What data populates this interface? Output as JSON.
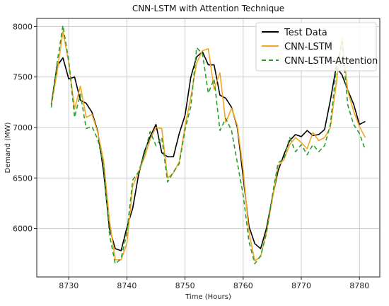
{
  "chart_data": {
    "type": "line",
    "title": "CNN-LSTM with Attention Technique",
    "xlabel": "Time (Hours)",
    "ylabel": "Demand (MW)",
    "xlim": [
      8724.5,
      8783.5
    ],
    "ylim": [
      5520,
      8080
    ],
    "xticks": [
      8730,
      8740,
      8750,
      8760,
      8770,
      8780
    ],
    "yticks": [
      6000,
      6500,
      7000,
      7500,
      8000
    ],
    "grid": true,
    "legend_position": "top-right",
    "x": [
      8727,
      8728,
      8729,
      8730,
      8731,
      8732,
      8733,
      8734,
      8735,
      8736,
      8737,
      8738,
      8739,
      8740,
      8741,
      8742,
      8743,
      8744,
      8745,
      8746,
      8747,
      8748,
      8749,
      8750,
      8751,
      8752,
      8753,
      8754,
      8755,
      8756,
      8757,
      8758,
      8759,
      8760,
      8761,
      8762,
      8763,
      8764,
      8765,
      8766,
      8767,
      8768,
      8769,
      8770,
      8771,
      8772,
      8773,
      8774,
      8775,
      8776,
      8777,
      8778,
      8779,
      8780,
      8781
    ],
    "series": [
      {
        "name": "Test Data",
        "color": "#000000",
        "dash": "",
        "values": [
          7230,
          7610,
          7690,
          7480,
          7500,
          7270,
          7240,
          7150,
          6960,
          6560,
          6000,
          5800,
          5780,
          6010,
          6200,
          6530,
          6760,
          6910,
          7030,
          6750,
          6710,
          6710,
          6940,
          7120,
          7500,
          7700,
          7750,
          7620,
          7620,
          7320,
          7290,
          7200,
          7000,
          6510,
          6020,
          5850,
          5800,
          6000,
          6300,
          6570,
          6730,
          6870,
          6930,
          6910,
          6970,
          6920,
          6930,
          6980,
          7270,
          7600,
          7520,
          7370,
          7230,
          7030,
          7060
        ]
      },
      {
        "name": "CNN-LSTM",
        "color": "#f5a623",
        "dash": "",
        "values": [
          7220,
          7550,
          7950,
          7640,
          7180,
          7410,
          7100,
          7130,
          6950,
          6670,
          6080,
          5690,
          5690,
          5850,
          6420,
          6560,
          6700,
          6880,
          7000,
          6990,
          6500,
          6550,
          6660,
          7010,
          7300,
          7640,
          7760,
          7780,
          7380,
          7540,
          7050,
          7190,
          7020,
          6580,
          5960,
          5680,
          5720,
          5960,
          6280,
          6620,
          6680,
          6830,
          6900,
          6850,
          6790,
          6950,
          6870,
          6900,
          7000,
          7430,
          7880,
          7360,
          7160,
          7010,
          6900
        ]
      },
      {
        "name": "CNN-LSTM-Attention",
        "color": "#2a9d2a",
        "dash": "6 4",
        "values": [
          7200,
          7640,
          8010,
          7660,
          7100,
          7330,
          6990,
          7010,
          6880,
          6620,
          5940,
          5650,
          5700,
          5960,
          6480,
          6560,
          6730,
          6960,
          6820,
          6900,
          6460,
          6560,
          6640,
          6980,
          7210,
          7790,
          7730,
          7340,
          7480,
          6970,
          7090,
          6970,
          6650,
          6330,
          5870,
          5650,
          5730,
          5950,
          6320,
          6650,
          6690,
          6900,
          6760,
          6830,
          6730,
          6830,
          6760,
          6820,
          7030,
          7570,
          7850,
          7220,
          7030,
          6940,
          6780
        ]
      }
    ]
  }
}
